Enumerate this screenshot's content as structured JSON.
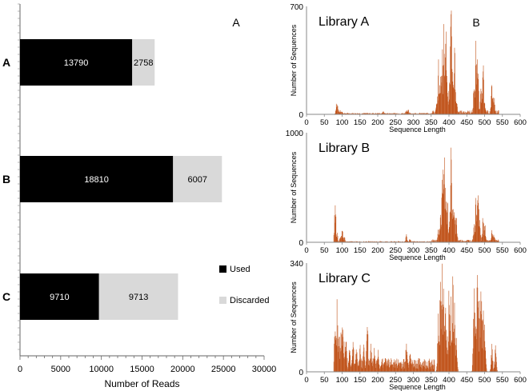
{
  "figure": {
    "panel_a_label": "A",
    "panel_b_label": "B"
  },
  "chart_data": [
    {
      "type": "bar",
      "orientation": "horizontal",
      "stacked": true,
      "title": "",
      "xlabel": "Number of Reads",
      "ylabel": "",
      "categories": [
        "A",
        "B",
        "C"
      ],
      "series": [
        {
          "name": "Used",
          "values": [
            13790,
            18810,
            9710
          ],
          "color": "#000000"
        },
        {
          "name": "Discarded",
          "values": [
            2758,
            6007,
            9713
          ],
          "color": "#d9d9d9"
        }
      ],
      "xlim": [
        0,
        30000
      ],
      "xticks": [
        0,
        5000,
        10000,
        15000,
        20000,
        25000,
        30000
      ],
      "xtick_labels": [
        "0",
        "5000",
        "10000",
        "15000",
        "20000",
        "25000",
        "30000"
      ],
      "legend_position": "right",
      "label_color_used": "#ffffff",
      "label_color_discarded": "#000000"
    },
    {
      "type": "bar",
      "subtype": "histogram",
      "title": "Library A",
      "xlabel": "Sequence Length",
      "ylabel": "Number of Sequences",
      "xlim": [
        0,
        600
      ],
      "ylim": [
        0,
        700
      ],
      "xticks": [
        0,
        50,
        100,
        150,
        200,
        250,
        300,
        350,
        400,
        450,
        500,
        550,
        600
      ],
      "xtick_labels": [
        "0",
        "50",
        "100",
        "150",
        "200",
        "250",
        "300",
        "350",
        "400",
        "450",
        "500",
        "550",
        "600"
      ],
      "yticks": [
        0,
        700
      ],
      "ytick_labels": [
        "0",
        "700"
      ],
      "color": "#c0531a",
      "peaks": [
        [
          85,
          100
        ],
        [
          90,
          30
        ],
        [
          95,
          25
        ],
        [
          100,
          15
        ],
        [
          215,
          20
        ],
        [
          280,
          35
        ],
        [
          285,
          30
        ],
        [
          365,
          70
        ],
        [
          370,
          300
        ],
        [
          375,
          250
        ],
        [
          380,
          440
        ],
        [
          385,
          520
        ],
        [
          390,
          700
        ],
        [
          395,
          250
        ],
        [
          400,
          180
        ],
        [
          405,
          650
        ],
        [
          410,
          300
        ],
        [
          415,
          440
        ],
        [
          420,
          120
        ],
        [
          470,
          180
        ],
        [
          475,
          430
        ],
        [
          480,
          380
        ],
        [
          490,
          180
        ],
        [
          495,
          300
        ],
        [
          500,
          100
        ],
        [
          520,
          180
        ],
        [
          525,
          150
        ]
      ]
    },
    {
      "type": "bar",
      "subtype": "histogram",
      "title": "Library B",
      "xlabel": "Sequence Length",
      "ylabel": "Number of Sequences",
      "xlim": [
        0,
        600
      ],
      "ylim": [
        0,
        1000
      ],
      "xticks": [
        0,
        50,
        100,
        150,
        200,
        250,
        300,
        350,
        400,
        450,
        500,
        550,
        600
      ],
      "xtick_labels": [
        "0",
        "50",
        "100",
        "150",
        "200",
        "250",
        "300",
        "350",
        "400",
        "450",
        "500",
        "550",
        "600"
      ],
      "yticks": [
        0,
        1000
      ],
      "ytick_labels": [
        "0",
        "1000"
      ],
      "color": "#c0531a",
      "peaks": [
        [
          80,
          330
        ],
        [
          85,
          90
        ],
        [
          95,
          80
        ],
        [
          100,
          100
        ],
        [
          105,
          60
        ],
        [
          280,
          70
        ],
        [
          290,
          40
        ],
        [
          370,
          110
        ],
        [
          375,
          240
        ],
        [
          380,
          480
        ],
        [
          385,
          980
        ],
        [
          390,
          600
        ],
        [
          395,
          350
        ],
        [
          400,
          150
        ],
        [
          405,
          870
        ],
        [
          410,
          300
        ],
        [
          415,
          380
        ],
        [
          420,
          250
        ],
        [
          470,
          180
        ],
        [
          475,
          420
        ],
        [
          480,
          480
        ],
        [
          485,
          300
        ],
        [
          495,
          250
        ],
        [
          500,
          180
        ],
        [
          520,
          100
        ],
        [
          525,
          80
        ]
      ]
    },
    {
      "type": "bar",
      "subtype": "histogram",
      "title": "Library C",
      "xlabel": "Sequence Length",
      "ylabel": "Number of Sequences",
      "xlim": [
        0,
        600
      ],
      "ylim": [
        0,
        340
      ],
      "xticks": [
        0,
        50,
        100,
        150,
        200,
        250,
        300,
        350,
        400,
        450,
        500,
        550,
        600
      ],
      "xtick_labels": [
        "0",
        "50",
        "100",
        "150",
        "200",
        "250",
        "300",
        "350",
        "400",
        "450",
        "500",
        "550",
        "600"
      ],
      "yticks": [
        0,
        340
      ],
      "ytick_labels": [
        "0",
        "340"
      ],
      "color": "#c0531a",
      "peaks": [
        [
          80,
          200
        ],
        [
          85,
          190
        ],
        [
          90,
          140
        ],
        [
          95,
          120
        ],
        [
          100,
          170
        ],
        [
          105,
          90
        ],
        [
          110,
          100
        ],
        [
          120,
          70
        ],
        [
          130,
          90
        ],
        [
          140,
          80
        ],
        [
          150,
          70
        ],
        [
          160,
          95
        ],
        [
          170,
          150
        ],
        [
          180,
          80
        ],
        [
          190,
          70
        ],
        [
          200,
          60
        ],
        [
          220,
          50
        ],
        [
          240,
          40
        ],
        [
          280,
          90
        ],
        [
          290,
          50
        ],
        [
          370,
          200
        ],
        [
          375,
          260
        ],
        [
          380,
          320
        ],
        [
          385,
          290
        ],
        [
          390,
          200
        ],
        [
          395,
          150
        ],
        [
          400,
          250
        ],
        [
          405,
          200
        ],
        [
          410,
          310
        ],
        [
          415,
          210
        ],
        [
          420,
          100
        ],
        [
          470,
          260
        ],
        [
          475,
          180
        ],
        [
          480,
          340
        ],
        [
          485,
          200
        ],
        [
          490,
          300
        ],
        [
          495,
          180
        ],
        [
          500,
          150
        ],
        [
          520,
          80
        ],
        [
          530,
          70
        ]
      ]
    }
  ]
}
